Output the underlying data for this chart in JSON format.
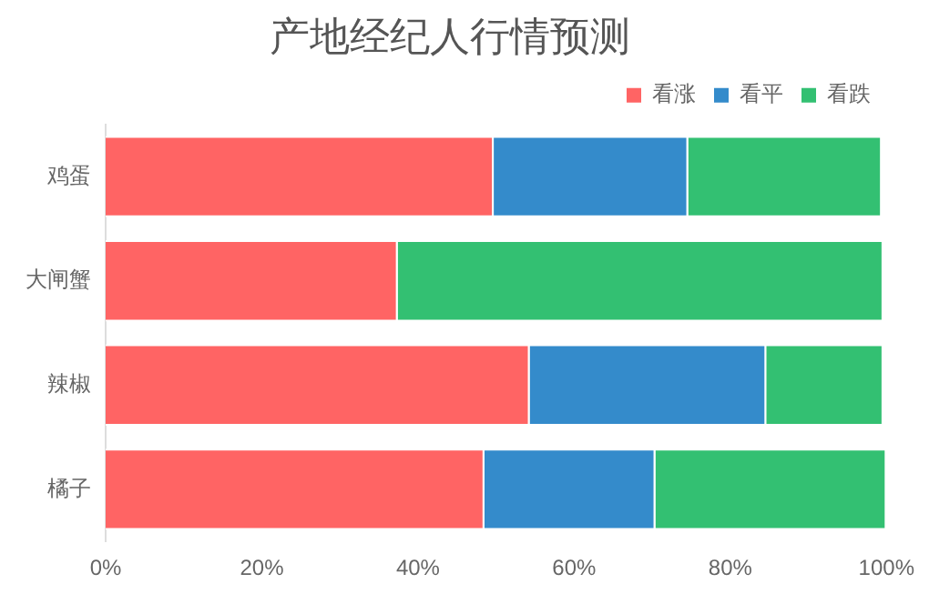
{
  "chart_data": {
    "type": "bar",
    "orientation": "horizontal",
    "stacked": true,
    "title": "产地经纪人行情预测",
    "categories": [
      "鸡蛋",
      "大闸蟹",
      "辣椒",
      "橘子"
    ],
    "series": [
      {
        "name": "看涨",
        "color": "#ff6464",
        "values": [
          49.7,
          37.4,
          54.3,
          48.5
        ]
      },
      {
        "name": "看平",
        "color": "#348bcb",
        "values": [
          24.9,
          0,
          30.3,
          21.9
        ]
      },
      {
        "name": "看跌",
        "color": "#33c072",
        "values": [
          24.8,
          62.2,
          15.0,
          29.6
        ]
      }
    ],
    "xlim": [
      0,
      100
    ],
    "xticks": [
      {
        "value": 0,
        "label": "0%"
      },
      {
        "value": 20,
        "label": "20%"
      },
      {
        "value": 40,
        "label": "40%"
      },
      {
        "value": 60,
        "label": "60%"
      },
      {
        "value": 80,
        "label": "80%"
      },
      {
        "value": 100,
        "label": "100%"
      }
    ],
    "grid": false,
    "legend": "top right"
  }
}
